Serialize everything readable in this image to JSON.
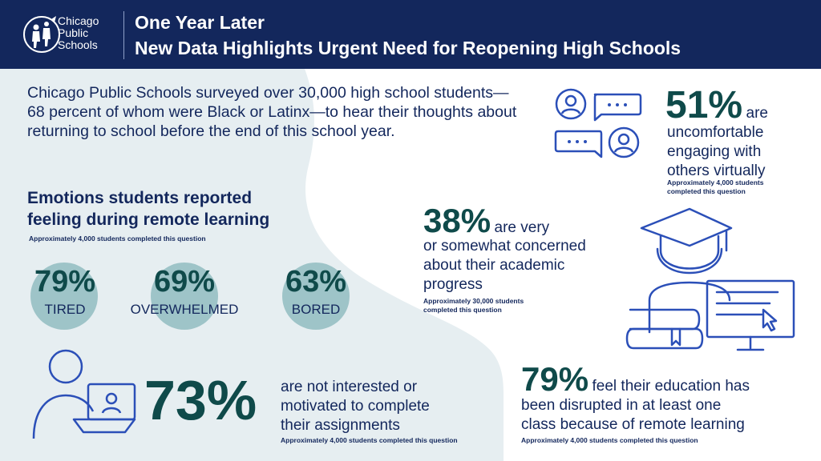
{
  "header": {
    "logo": {
      "line1": "Chicago",
      "line2": "Public",
      "line3": "Schools"
    },
    "title": "One Year Later",
    "subtitle": "New Data Highlights Urgent Need for Reopening High Schools"
  },
  "intro": "Chicago Public Schools surveyed over 30,000 high school students—68 percent of whom were Black or Latinx—to hear their thoughts about returning to school before the end of this school year.",
  "emotions": {
    "heading_line1": "Emotions students reported",
    "heading_line2": "feeling during remote learning",
    "note": "Approximately 4,000 students completed this question",
    "items": [
      {
        "pct": "79%",
        "label": "TIRED"
      },
      {
        "pct": "69%",
        "label": "OVERWHELMED"
      },
      {
        "pct": "63%",
        "label": "BORED"
      }
    ]
  },
  "stat_motivation": {
    "pct": "73%",
    "line1": "are not interested or",
    "line2": "motivated to complete",
    "line3": "their assignments",
    "note": "Approximately 4,000 students completed this question"
  },
  "stat_virtual": {
    "pct": "51%",
    "suffix": "are",
    "line1": "uncomfortable",
    "line2": "engaging with",
    "line3": "others virtually",
    "note1": "Approximately 4,000 students",
    "note2": "completed this question"
  },
  "stat_academic": {
    "pct": "38%",
    "suffix": "are very",
    "line1": "or somewhat concerned",
    "line2": "about their academic",
    "line3": "progress",
    "note1": "Approximately 30,000 students",
    "note2": "completed this question"
  },
  "stat_disrupted": {
    "pct": "79%",
    "suffix": "feel their education has",
    "line1": "been disrupted in at least one",
    "line2": "class because of remote learning",
    "note": "Approximately 4,000 students completed this question"
  },
  "colors": {
    "navy": "#13275c",
    "teal_text": "#0f4a4a",
    "teal_circle": "#9ec4c8",
    "icon_blue": "#2b4fb8",
    "bg_light": "#e6eef1"
  }
}
